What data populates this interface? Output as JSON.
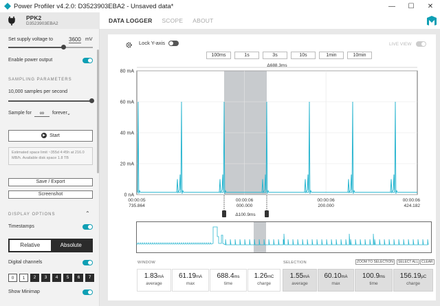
{
  "window": {
    "title": "Power Profiler v4.2.0: D3523903EBA2 - Unsaved data*",
    "min": "—",
    "max": "☐",
    "close": "✕"
  },
  "device": {
    "name": "PPK2",
    "serial": "D3523903EBA2"
  },
  "tabs": [
    {
      "label": "DATA LOGGER",
      "active": true
    },
    {
      "label": "SCOPE"
    },
    {
      "label": "ABOUT"
    }
  ],
  "sidebar": {
    "supply_label": "Set supply voltage to",
    "supply_value": "3600",
    "supply_unit": "mV",
    "power_output": "Enable power output",
    "sampling_title": "SAMPLING PARAMETERS",
    "samples_rate": "10,000 samples per second",
    "sample_for": "Sample for",
    "sample_for_value": "∞",
    "sample_for_unit": "forever",
    "start": "Start",
    "info": "Estimated space limit ~355d 4:45h at 216.0 MB/h. Available disk space 1.8 TB",
    "save_export": "Save / Export",
    "screenshot": "Screenshot",
    "display_title": "DISPLAY OPTIONS",
    "timestamps": "Timestamps",
    "relative": "Relative",
    "absolute": "Absolute",
    "digital_channels": "Digital channels",
    "channels": [
      "0",
      "1",
      "2",
      "3",
      "4",
      "5",
      "6",
      "7"
    ],
    "show_minimap": "Show Minimap"
  },
  "chart_controls": {
    "lock_y": "Lock Y-axis",
    "live_view": "LIVE VIEW",
    "windows": [
      "100ms",
      "1s",
      "3s",
      "10s",
      "1min",
      "10min"
    ]
  },
  "chart_data": {
    "type": "line",
    "ylim": [
      0,
      80
    ],
    "y_unit": "mA",
    "yticks": [
      "80 mA",
      "60 mA",
      "40 mA",
      "20 mA",
      "0 nA"
    ],
    "xticks": [
      {
        "l1": "00:00:05",
        "l2": "735.864"
      },
      {
        "l1": "00:00:06",
        "l2": "000.000"
      },
      {
        "l1": "00:00:06",
        "l2": "200.000"
      },
      {
        "l1": "00:00:06",
        "l2": "424.182"
      }
    ],
    "window_span_label": "Δ688.3ms",
    "selection_label": "Δ100.9ms",
    "peaks_ms": [
      5750,
      5860,
      5980,
      6090,
      6210,
      6320,
      6420
    ],
    "peak_value_ma": 60,
    "baseline_ma": 1.5
  },
  "stats": {
    "window_title": "WINDOW",
    "selection_title": "SELECTION",
    "zoom_to_selection": "ZOOM TO SELECTION",
    "select_all": "SELECT ALL",
    "clear": "CLEAR",
    "window": [
      {
        "value": "1.83",
        "unit": "mA",
        "label": "average"
      },
      {
        "value": "61.19",
        "unit": "mA",
        "label": "max"
      },
      {
        "value": "688.4",
        "unit": "ms",
        "label": "time"
      },
      {
        "value": "1.26",
        "unit": "mC",
        "label": "charge"
      }
    ],
    "selection": [
      {
        "value": "1.55",
        "unit": "mA",
        "label": "average"
      },
      {
        "value": "60.10",
        "unit": "mA",
        "label": "max"
      },
      {
        "value": "100.9",
        "unit": "ms",
        "label": "time"
      },
      {
        "value": "156.19",
        "unit": "µC",
        "label": "charge"
      }
    ]
  },
  "colors": {
    "accent": "#0f9fb4",
    "trace": "#2bb6d0",
    "dark": "#2b2b2b"
  }
}
